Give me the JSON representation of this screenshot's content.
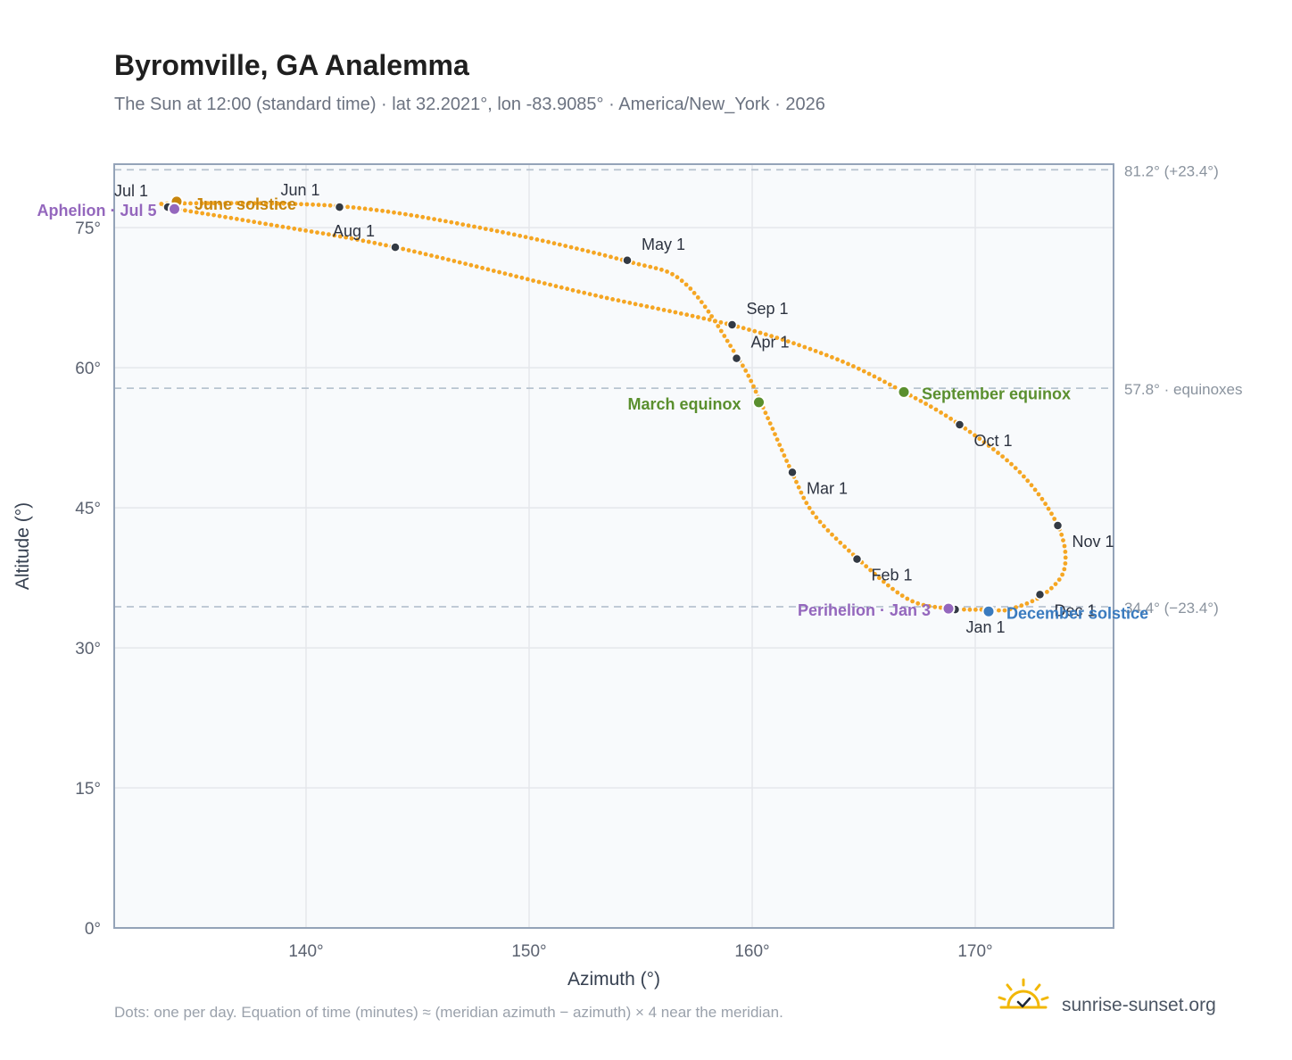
{
  "title": "Byromville, GA Analemma",
  "subtitle": "The Sun at 12:00 (standard time) · lat 32.2021°, lon -83.9085° · America/New_York · 2026",
  "footnote": "Dots: one per day. Equation of time (minutes) ≈ (meridian azimuth − azimuth) × 4 near the meridian.",
  "brand": {
    "name": "sunrise-sunset.org",
    "icon": "sun-logo-icon"
  },
  "colors": {
    "background": "#ffffff",
    "plot_bg": "#f8fafc",
    "grid": "#e5e7eb",
    "frame": "#94a3b8",
    "path": "#f5a623",
    "month_dot": "#333a44",
    "solstice_june": "#c8860d",
    "solstice_december": "#3a7bbf",
    "equinox": "#5a8f2e",
    "apsis": "#9467bd",
    "ref_line": "#b8c4d0",
    "ref_text": "#8a939e",
    "title": "#1f1f1f",
    "subtitle": "#6b7280"
  },
  "chart_data": {
    "type": "scatter",
    "xlabel": "Azimuth (°)",
    "ylabel": "Altitude (°)",
    "xlim": [
      131.4,
      176.2
    ],
    "ylim": [
      0,
      81.8
    ],
    "xticks": [
      {
        "value": 140,
        "label": "140°"
      },
      {
        "value": 150,
        "label": "150°"
      },
      {
        "value": 160,
        "label": "160°"
      },
      {
        "value": 170,
        "label": "170°"
      }
    ],
    "yticks": [
      {
        "value": 0,
        "label": "0°"
      },
      {
        "value": 15,
        "label": "15°"
      },
      {
        "value": 30,
        "label": "30°"
      },
      {
        "value": 45,
        "label": "45°"
      },
      {
        "value": 60,
        "label": "60°"
      },
      {
        "value": 75,
        "label": "75°"
      }
    ],
    "grid": true,
    "reference_lines": [
      {
        "value": 81.2,
        "label": "81.2° (+23.4°)"
      },
      {
        "value": 57.8,
        "label": "57.8° · equinoxes"
      },
      {
        "value": 34.4,
        "label": "34.4° (−23.4°)"
      }
    ],
    "path_anchors": [
      {
        "az": 170.8,
        "alt": 34.1
      },
      {
        "az": 168.9,
        "alt": 34.2
      },
      {
        "az": 167.0,
        "alt": 35.2
      },
      {
        "az": 164.8,
        "alt": 39.4
      },
      {
        "az": 162.8,
        "alt": 44.2
      },
      {
        "az": 161.8,
        "alt": 48.7
      },
      {
        "az": 160.4,
        "alt": 56.2
      },
      {
        "az": 159.4,
        "alt": 60.9
      },
      {
        "az": 157.0,
        "alt": 69.0
      },
      {
        "az": 154.4,
        "alt": 71.4
      },
      {
        "az": 148.0,
        "alt": 74.9
      },
      {
        "az": 141.5,
        "alt": 77.3
      },
      {
        "az": 134.2,
        "alt": 77.6
      },
      {
        "az": 133.7,
        "alt": 77.3
      },
      {
        "az": 134.2,
        "alt": 77.0
      },
      {
        "az": 138.2,
        "alt": 75.4
      },
      {
        "az": 144.0,
        "alt": 72.9
      },
      {
        "az": 152.5,
        "alt": 68.0
      },
      {
        "az": 159.2,
        "alt": 64.5
      },
      {
        "az": 163.6,
        "alt": 61.1
      },
      {
        "az": 166.8,
        "alt": 57.4
      },
      {
        "az": 169.3,
        "alt": 53.9
      },
      {
        "az": 172.0,
        "alt": 48.8
      },
      {
        "az": 173.7,
        "alt": 43.1
      },
      {
        "az": 174.0,
        "alt": 38.5
      },
      {
        "az": 173.0,
        "alt": 35.6
      },
      {
        "az": 171.5,
        "alt": 34.1
      },
      {
        "az": 170.8,
        "alt": 34.1
      }
    ],
    "months": [
      {
        "label": "Jan 1",
        "az": 169.1,
        "alt": 34.1,
        "dx": 12,
        "dy": 26
      },
      {
        "label": "Feb 1",
        "az": 164.7,
        "alt": 39.5,
        "dx": 16,
        "dy": 24
      },
      {
        "label": "Mar 1",
        "az": 161.8,
        "alt": 48.8,
        "dx": 16,
        "dy": 24
      },
      {
        "label": "Apr 1",
        "az": 159.3,
        "alt": 61.0,
        "dx": 16,
        "dy": -12
      },
      {
        "label": "May 1",
        "az": 154.4,
        "alt": 71.5,
        "dx": 16,
        "dy": -12
      },
      {
        "label": "Jun 1",
        "az": 141.5,
        "alt": 77.2,
        "dx": -66,
        "dy": -13
      },
      {
        "label": "Jul 1",
        "az": 133.8,
        "alt": 77.2,
        "dx": -60,
        "dy": -12
      },
      {
        "label": "Aug 1",
        "az": 144.0,
        "alt": 72.9,
        "dx": -70,
        "dy": -12
      },
      {
        "label": "Sep 1",
        "az": 159.1,
        "alt": 64.6,
        "dx": 16,
        "dy": -12
      },
      {
        "label": "Oct 1",
        "az": 169.3,
        "alt": 53.9,
        "dx": 16,
        "dy": 24
      },
      {
        "label": "Nov 1",
        "az": 173.7,
        "alt": 43.1,
        "dx": 16,
        "dy": 24
      },
      {
        "label": "Dec 1",
        "az": 172.9,
        "alt": 35.7,
        "dx": 16,
        "dy": 24
      }
    ],
    "events": [
      {
        "label": "June solstice",
        "az": 134.2,
        "alt": 77.8,
        "kind": "solstice_june",
        "anchor": "start",
        "dx": 20,
        "dy": 9
      },
      {
        "label": "Aphelion · Jul 5",
        "az": 134.1,
        "alt": 77.0,
        "kind": "apsis",
        "anchor": "end",
        "dx": -20,
        "dy": 8
      },
      {
        "label": "March equinox",
        "az": 160.3,
        "alt": 56.3,
        "kind": "equinox",
        "anchor": "end",
        "dx": -20,
        "dy": 8
      },
      {
        "label": "September equinox",
        "az": 166.8,
        "alt": 57.4,
        "kind": "equinox",
        "anchor": "start",
        "dx": 20,
        "dy": 8
      },
      {
        "label": "Perihelion · Jan 3",
        "az": 168.8,
        "alt": 34.2,
        "kind": "apsis",
        "anchor": "end",
        "dx": -20,
        "dy": 8
      },
      {
        "label": "December solstice",
        "az": 170.6,
        "alt": 33.9,
        "kind": "solstice_december",
        "anchor": "start",
        "dx": 20,
        "dy": 8
      }
    ]
  }
}
